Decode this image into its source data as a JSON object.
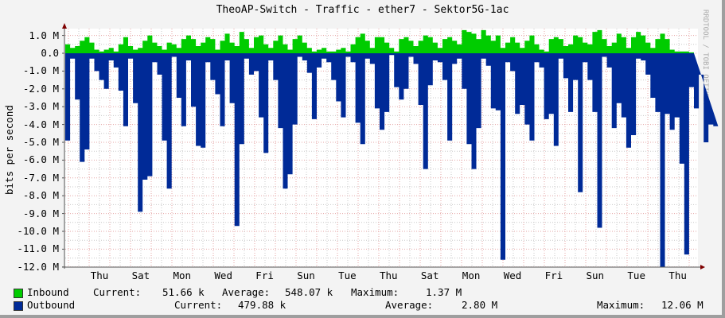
{
  "title": "TheoAP-Switch - Traffic - ether7 - Sektor5G-1ac",
  "watermark": "RRDTOOL / TOBI OETIKER",
  "colors": {
    "inbound": "#00cc00",
    "outbound": "#002a97",
    "grid_major": "#e5a5a5",
    "grid_minor": "#c8c8c8",
    "axis": "#7f0000"
  },
  "legend": {
    "inbound": {
      "label": "Inbound",
      "current_label": "Current:",
      "current": "51.66 k",
      "average_label": "Average:",
      "average": "548.07 k",
      "maximum_label": "Maximum:",
      "maximum": "1.37 M"
    },
    "outbound": {
      "label": "Outbound",
      "current_label": "Current:",
      "current": "479.88 k",
      "average_label": "Average:",
      "average": "2.80 M",
      "maximum_label": "Maximum:",
      "maximum": "12.06 M"
    }
  },
  "chart_data": {
    "type": "area",
    "title": "TheoAP-Switch - Traffic - ether7 - Sektor5G-1ac",
    "xlabel": "",
    "ylabel": "bits per second",
    "ylim": [
      -12.0,
      1.4
    ],
    "y_ticks": [
      "1.0 M",
      "0.0",
      "-1.0 M",
      "-2.0 M",
      "-3.0 M",
      "-4.0 M",
      "-5.0 M",
      "-6.0 M",
      "-7.0 M",
      "-8.0 M",
      "-9.0 M",
      "-10.0 M",
      "-11.0 M",
      "-12.0 M"
    ],
    "x_ticks": [
      "Thu",
      "Sat",
      "Mon",
      "Wed",
      "Fri",
      "Sun",
      "Tue",
      "Thu",
      "Sat",
      "Mon",
      "Wed",
      "Fri",
      "Sun",
      "Tue",
      "Thu"
    ],
    "grid": true,
    "legend_position": "bottom",
    "units": "M bits/s",
    "series": [
      {
        "name": "Inbound",
        "values": [
          0.5,
          0.3,
          0.4,
          0.7,
          0.9,
          0.6,
          0.2,
          0.1,
          0.2,
          0.3,
          0.1,
          0.5,
          0.9,
          0.4,
          0.2,
          0.3,
          0.7,
          1.0,
          0.6,
          0.4,
          0.2,
          0.6,
          0.5,
          0.3,
          0.8,
          1.0,
          0.8,
          0.4,
          0.6,
          0.9,
          0.8,
          0.2,
          0.7,
          1.1,
          0.6,
          0.4,
          1.2,
          0.8,
          0.3,
          0.9,
          1.0,
          0.5,
          0.3,
          0.7,
          1.0,
          0.5,
          0.2,
          0.8,
          1.0,
          0.6,
          0.3,
          0.1,
          0.2,
          0.3,
          0.1,
          0.1,
          0.2,
          0.3,
          0.1,
          0.5,
          0.9,
          1.1,
          0.7,
          0.3,
          0.9,
          0.9,
          0.6,
          0.3,
          0.1,
          0.8,
          0.9,
          0.7,
          0.4,
          0.7,
          1.0,
          0.9,
          0.6,
          0.3,
          0.8,
          0.9,
          0.7,
          0.5,
          1.3,
          1.2,
          1.1,
          0.8,
          1.3,
          1.0,
          0.7,
          1.0,
          0.3,
          0.6,
          0.9,
          0.6,
          0.3,
          0.7,
          1.0,
          0.5,
          0.2,
          0.1,
          0.8,
          0.9,
          0.8,
          0.4,
          0.5,
          1.0,
          0.9,
          0.6,
          0.5,
          1.2,
          1.3,
          0.8,
          0.4,
          0.6,
          1.1,
          0.9,
          0.3,
          0.9,
          1.2,
          1.0,
          0.6,
          0.3,
          0.8,
          1.1,
          0.8,
          0.2,
          0.1,
          0.1,
          0.1,
          0.05
        ]
      },
      {
        "name": "Outbound",
        "values": [
          -4.9,
          -0.3,
          -2.6,
          -6.1,
          -5.4,
          -0.3,
          -1.0,
          -1.5,
          -2.0,
          -0.4,
          -0.8,
          -2.1,
          -4.1,
          -0.3,
          -2.8,
          -8.9,
          -7.1,
          -6.9,
          -0.5,
          -1.2,
          -4.9,
          -7.6,
          -0.2,
          -2.5,
          -4.1,
          -0.4,
          -3.0,
          -5.2,
          -5.3,
          -0.5,
          -1.5,
          -2.3,
          -4.1,
          -0.4,
          -2.8,
          -9.7,
          -5.1,
          -0.3,
          -1.2,
          -1.0,
          -3.6,
          -5.6,
          -0.4,
          -1.5,
          -4.2,
          -7.6,
          -6.8,
          -4.0,
          -0.2,
          -0.4,
          -1.1,
          -3.7,
          -0.8,
          -0.3,
          -0.5,
          -1.5,
          -2.7,
          -3.6,
          -0.2,
          -0.5,
          -3.9,
          -5.1,
          -0.3,
          -0.6,
          -3.1,
          -4.3,
          -3.3,
          -0.1,
          -1.9,
          -2.6,
          -2.0,
          -0.2,
          -0.6,
          -2.9,
          -6.5,
          -1.8,
          -0.4,
          -0.5,
          -1.5,
          -4.9,
          -0.6,
          -0.3,
          -2.0,
          -5.1,
          -6.5,
          -4.2,
          -0.3,
          -0.7,
          -3.1,
          -3.2,
          -11.6,
          -0.5,
          -1.0,
          -3.4,
          -2.9,
          -4.0,
          -4.9,
          -0.5,
          -0.8,
          -3.7,
          -3.4,
          -5.2,
          -0.3,
          -1.4,
          -3.3,
          -1.5,
          -7.8,
          -0.5,
          -1.5,
          -3.3,
          -9.8,
          -0.2,
          -0.8,
          -4.2,
          -2.8,
          -3.6,
          -5.3,
          -4.6,
          -0.3,
          -0.4,
          -1.2,
          -2.5,
          -3.3,
          -12.0,
          -3.4,
          -4.3,
          -3.6,
          -6.2,
          -11.3,
          -1.9,
          -3.1,
          -1.2,
          -5.0,
          -4.0,
          -4.1
        ]
      }
    ]
  }
}
